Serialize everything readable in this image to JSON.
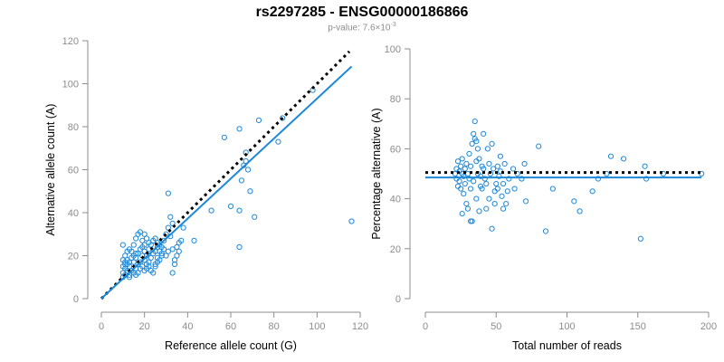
{
  "header": {
    "title": "rs2297285 - ENSG00000186866",
    "subtitle_prefix": "p-value: 7.6×10",
    "subtitle_exponent": "-3"
  },
  "colors": {
    "points": "#1e88d8",
    "fit_line": "#1e88d8",
    "expected_line": "#000000",
    "axis": "#8c8c8c"
  },
  "chart_data": [
    {
      "type": "scatter",
      "title": "",
      "xlabel": "Reference allele count (G)",
      "ylabel": "Alternative allele count (A)",
      "xlim": [
        0,
        120
      ],
      "ylim": [
        0,
        120
      ],
      "xticks": [
        0,
        20,
        40,
        60,
        80,
        100,
        120
      ],
      "yticks": [
        0,
        20,
        40,
        60,
        80,
        100,
        120
      ],
      "grid": false,
      "lines": [
        {
          "name": "",
          "style": "dotted",
          "color": "#000000",
          "points": [
            [
              0,
              0
            ],
            [
              115,
              115
            ]
          ]
        },
        {
          "name": "",
          "style": "solid",
          "color": "#1e88d8",
          "points": [
            [
              0,
              0
            ],
            [
              116,
              108
            ]
          ]
        }
      ],
      "points": [
        [
          10,
          10
        ],
        [
          11,
          11
        ],
        [
          10,
          12
        ],
        [
          12,
          13
        ],
        [
          11,
          14
        ],
        [
          12,
          12
        ],
        [
          13,
          11
        ],
        [
          10,
          15
        ],
        [
          11,
          16
        ],
        [
          12,
          18
        ],
        [
          13,
          15
        ],
        [
          10,
          18
        ],
        [
          11,
          20
        ],
        [
          12,
          22
        ],
        [
          10,
          25
        ],
        [
          13,
          23
        ],
        [
          14,
          22
        ],
        [
          15,
          20
        ],
        [
          16,
          19
        ],
        [
          17,
          21
        ],
        [
          18,
          23
        ],
        [
          15,
          25
        ],
        [
          16,
          28
        ],
        [
          17,
          30
        ],
        [
          18,
          31
        ],
        [
          19,
          27
        ],
        [
          20,
          25
        ],
        [
          20,
          22
        ],
        [
          21,
          20
        ],
        [
          22,
          23
        ],
        [
          23,
          25
        ],
        [
          24,
          27
        ],
        [
          25,
          28
        ],
        [
          26,
          24
        ],
        [
          27,
          22
        ],
        [
          28,
          20
        ],
        [
          20,
          18
        ],
        [
          21,
          16
        ],
        [
          22,
          15
        ],
        [
          23,
          13
        ],
        [
          24,
          12
        ],
        [
          25,
          15
        ],
        [
          26,
          17
        ],
        [
          18,
          14
        ],
        [
          17,
          16
        ],
        [
          16,
          14
        ],
        [
          15,
          12
        ],
        [
          14,
          13
        ],
        [
          13,
          17
        ],
        [
          12,
          16
        ],
        [
          11,
          17
        ],
        [
          14,
          19
        ],
        [
          15,
          17
        ],
        [
          16,
          21
        ],
        [
          19,
          20
        ],
        [
          19,
          15
        ],
        [
          18,
          17
        ],
        [
          20,
          13
        ],
        [
          21,
          14
        ],
        [
          22,
          17
        ],
        [
          23,
          19
        ],
        [
          24,
          21
        ],
        [
          25,
          22
        ],
        [
          26,
          26
        ],
        [
          27,
          25
        ],
        [
          28,
          24
        ],
        [
          29,
          27
        ],
        [
          30,
          30
        ],
        [
          31,
          33
        ],
        [
          32,
          29
        ],
        [
          33,
          23
        ],
        [
          34,
          18
        ],
        [
          35,
          24
        ],
        [
          36,
          26
        ],
        [
          37,
          27
        ],
        [
          38,
          33
        ],
        [
          30,
          20
        ],
        [
          31,
          22
        ],
        [
          32,
          38
        ],
        [
          33,
          35
        ],
        [
          31,
          49
        ],
        [
          43,
          27
        ],
        [
          51,
          41
        ],
        [
          57,
          75
        ],
        [
          60,
          43
        ],
        [
          64,
          41
        ],
        [
          64,
          24
        ],
        [
          65,
          55
        ],
        [
          66,
          62
        ],
        [
          67,
          68
        ],
        [
          67,
          64
        ],
        [
          68,
          60
        ],
        [
          69,
          50
        ],
        [
          71,
          38
        ],
        [
          73,
          83
        ],
        [
          82,
          73
        ],
        [
          84,
          84
        ],
        [
          98,
          97
        ],
        [
          116,
          36
        ],
        [
          64,
          79
        ],
        [
          25,
          16
        ],
        [
          26,
          19
        ],
        [
          27,
          18
        ],
        [
          28,
          21
        ],
        [
          29,
          23
        ],
        [
          33,
          12
        ],
        [
          34,
          16
        ],
        [
          35,
          20
        ],
        [
          36,
          22
        ],
        [
          22,
          26
        ],
        [
          21,
          28
        ],
        [
          20,
          30
        ],
        [
          19,
          24
        ],
        [
          17,
          12
        ],
        [
          16,
          11
        ],
        [
          13,
          10
        ]
      ]
    },
    {
      "type": "scatter",
      "title": "",
      "xlabel": "Total number of reads",
      "ylabel": "Percentage alternative (A)",
      "xlim": [
        0,
        200
      ],
      "ylim": [
        0,
        100
      ],
      "xticks": [
        0,
        50,
        100,
        150,
        200
      ],
      "yticks": [
        0,
        20,
        40,
        60,
        80,
        100
      ],
      "grid": false,
      "lines": [
        {
          "name": "",
          "style": "dotted",
          "color": "#000000",
          "points": [
            [
              0,
              50.5
            ],
            [
              195,
              50.5
            ]
          ]
        },
        {
          "name": "",
          "style": "solid",
          "color": "#1e88d8",
          "points": [
            [
              0,
              48.5
            ],
            [
              195,
              48.5
            ]
          ]
        }
      ],
      "points": [
        [
          21,
          50
        ],
        [
          22,
          52
        ],
        [
          22,
          48
        ],
        [
          23,
          55
        ],
        [
          23,
          45
        ],
        [
          24,
          51
        ],
        [
          24,
          47
        ],
        [
          25,
          53
        ],
        [
          25,
          44
        ],
        [
          26,
          50
        ],
        [
          26,
          56
        ],
        [
          27,
          49
        ],
        [
          27,
          42
        ],
        [
          28,
          52
        ],
        [
          28,
          46
        ],
        [
          29,
          54
        ],
        [
          29,
          38
        ],
        [
          30,
          50
        ],
        [
          30,
          36
        ],
        [
          31,
          48
        ],
        [
          31,
          58
        ],
        [
          32,
          53
        ],
        [
          32,
          44
        ],
        [
          33,
          31
        ],
        [
          33,
          62
        ],
        [
          34,
          66
        ],
        [
          34,
          47
        ],
        [
          35,
          71
        ],
        [
          35,
          64
        ],
        [
          36,
          55
        ],
        [
          36,
          40
        ],
        [
          37,
          60
        ],
        [
          37,
          50
        ],
        [
          38,
          56
        ],
        [
          38,
          35
        ],
        [
          39,
          49
        ],
        [
          39,
          45
        ],
        [
          40,
          53
        ],
        [
          40,
          44
        ],
        [
          41,
          52
        ],
        [
          41,
          66
        ],
        [
          42,
          48
        ],
        [
          43,
          46
        ],
        [
          43,
          36
        ],
        [
          44,
          60
        ],
        [
          45,
          40
        ],
        [
          45,
          54
        ],
        [
          46,
          50
        ],
        [
          47,
          28
        ],
        [
          47,
          62
        ],
        [
          48,
          52
        ],
        [
          49,
          43
        ],
        [
          49,
          38
        ],
        [
          50,
          46
        ],
        [
          51,
          44
        ],
        [
          51,
          53
        ],
        [
          52,
          49
        ],
        [
          53,
          51
        ],
        [
          53,
          57
        ],
        [
          54,
          41
        ],
        [
          55,
          36
        ],
        [
          55,
          46
        ],
        [
          56,
          54
        ],
        [
          57,
          38
        ],
        [
          58,
          43
        ],
        [
          59,
          48
        ],
        [
          62,
          52
        ],
        [
          63,
          44
        ],
        [
          65,
          50
        ],
        [
          68,
          48
        ],
        [
          70,
          54
        ],
        [
          71,
          39
        ],
        [
          80,
          61
        ],
        [
          85,
          27
        ],
        [
          90,
          44
        ],
        [
          105,
          39
        ],
        [
          109,
          35
        ],
        [
          118,
          43
        ],
        [
          122,
          48
        ],
        [
          128,
          50
        ],
        [
          131,
          57
        ],
        [
          140,
          56
        ],
        [
          152,
          24
        ],
        [
          155,
          53
        ],
        [
          156,
          48
        ],
        [
          168,
          50
        ],
        [
          195,
          50
        ],
        [
          26,
          34
        ],
        [
          32,
          31
        ],
        [
          36,
          63
        ]
      ]
    }
  ]
}
